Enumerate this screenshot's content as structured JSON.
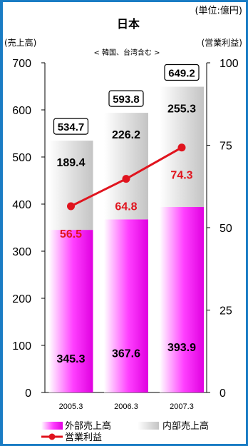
{
  "unit_note": "(単位:億円)",
  "chart_data": {
    "type": "bar",
    "title": "日本",
    "subtitle": "< 韓国、台湾含む >",
    "categories": [
      "2005.3",
      "2006.3",
      "2007.3"
    ],
    "left_axis": {
      "label": "(売上高)",
      "min": 0,
      "max": 700,
      "ticks": [
        0,
        100,
        200,
        300,
        400,
        500,
        600,
        700
      ]
    },
    "right_axis": {
      "label": "(営業利益)",
      "min": 0,
      "max": 100,
      "ticks": [
        0,
        25,
        50,
        75,
        100
      ]
    },
    "series": [
      {
        "name": "外部売上高",
        "kind": "stacked-bar",
        "axis": "left",
        "values": [
          345.3,
          367.6,
          393.9
        ],
        "color": "#e000e0"
      },
      {
        "name": "内部売上高",
        "kind": "stacked-bar",
        "axis": "left",
        "values": [
          189.4,
          226.2,
          255.3
        ],
        "color": "#cfcfcf"
      },
      {
        "name": "営業利益",
        "kind": "line",
        "axis": "right",
        "values": [
          56.5,
          64.8,
          74.3
        ],
        "color": "#e0141e"
      }
    ],
    "totals": [
      534.7,
      593.8,
      649.2
    ],
    "legend_position": "bottom"
  }
}
